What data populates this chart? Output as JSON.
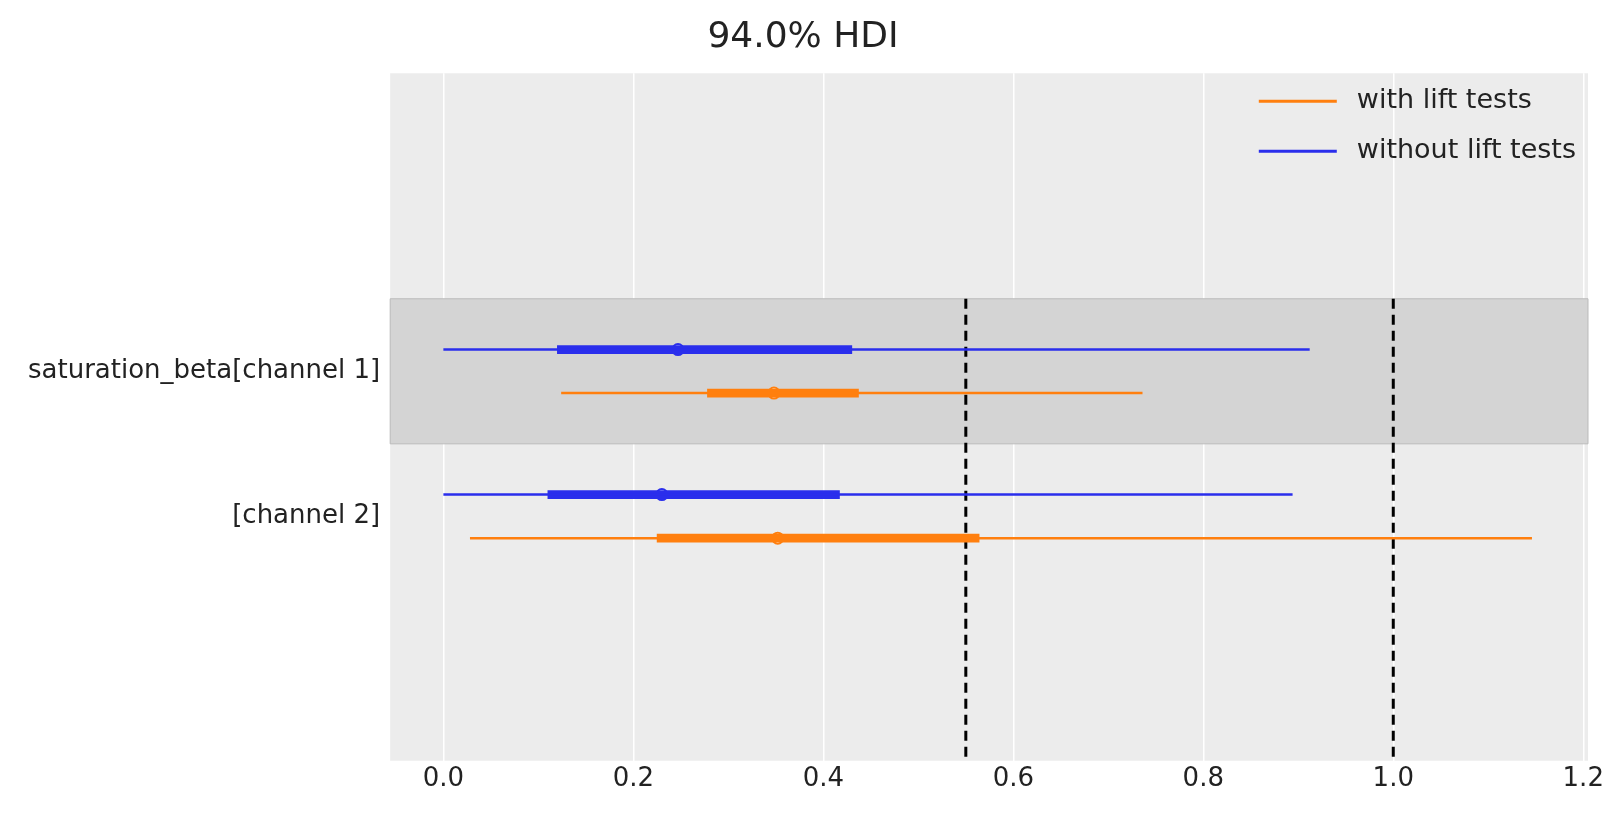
{
  "chart_data": {
    "type": "box",
    "orientation": "horizontal",
    "title": "94.0% HDI",
    "categories": [
      "saturation_beta[channel 1]",
      "[channel 2]"
    ],
    "series": [
      {
        "name": "with lift tests",
        "color": "#ff7f0e",
        "boxes": [
          {
            "low": 0.124,
            "q1": 0.278,
            "median": 0.348,
            "q3": 0.437,
            "high": 0.736
          },
          {
            "low": 0.028,
            "q1": 0.225,
            "median": 0.352,
            "q3": 0.564,
            "high": 1.146
          }
        ]
      },
      {
        "name": "without lift tests",
        "color": "#2a2eec",
        "boxes": [
          {
            "low": 0.0,
            "q1": 0.12,
            "median": 0.247,
            "q3": 0.43,
            "high": 0.912
          },
          {
            "low": 0.0,
            "q1": 0.11,
            "median": 0.23,
            "q3": 0.417,
            "high": 0.894
          }
        ]
      }
    ],
    "xlim": [
      -0.056,
      1.205
    ],
    "xticks": [
      {
        "value": 0,
        "label": "0.0"
      },
      {
        "value": 0.2,
        "label": "0.2"
      },
      {
        "value": 0.4,
        "label": "0.4"
      },
      {
        "value": 0.6,
        "label": "0.6"
      },
      {
        "value": 0.8,
        "label": "0.8"
      },
      {
        "value": 1,
        "label": "1.0"
      },
      {
        "value": 1.2,
        "label": "1.2"
      }
    ],
    "ref_lines": [
      {
        "axis": "x",
        "value": 0.55,
        "color": "#000000",
        "line_style": "dashed"
      },
      {
        "axis": "x",
        "value": 1.0,
        "color": "#000000",
        "line_style": "dashed"
      }
    ],
    "bands": [
      {
        "axis": "y",
        "from": "saturation_beta[channel 1]",
        "to": "saturation_beta[channel 1]",
        "color": "#d4d4d4"
      }
    ],
    "grid": "x",
    "legend": "top right",
    "marker": "circle"
  }
}
